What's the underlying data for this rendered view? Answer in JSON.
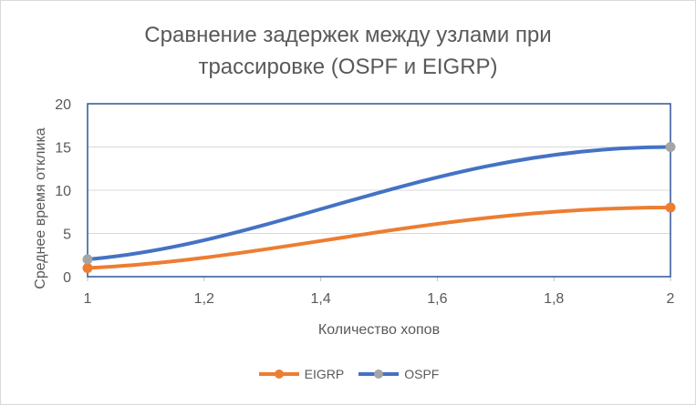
{
  "chart_data": {
    "type": "line",
    "title_lines": [
      "Сравнение задержек между узлами при",
      "трассировке (OSPF и EIGRP)"
    ],
    "xlabel": "Количество хопов",
    "ylabel": "Среднее время отклика",
    "xlim": [
      1,
      2
    ],
    "ylim": [
      0,
      20
    ],
    "x_ticks": [
      "1",
      "1,2",
      "1,4",
      "1,6",
      "1,8",
      "2"
    ],
    "x_tick_values": [
      1,
      1.2,
      1.4,
      1.6,
      1.8,
      2
    ],
    "y_ticks": [
      "0",
      "5",
      "10",
      "15",
      "20"
    ],
    "y_tick_values": [
      0,
      5,
      10,
      15,
      20
    ],
    "grid": "horizontal",
    "smooth": true,
    "legend_position": "bottom",
    "series": [
      {
        "name": "EIGRP",
        "x": [
          1,
          2
        ],
        "values": [
          1,
          8
        ],
        "color": "#ed7d31",
        "marker_color": "#ed7d31"
      },
      {
        "name": "OSPF",
        "x": [
          1,
          2
        ],
        "values": [
          2,
          15
        ],
        "color": "#4472c4",
        "marker_color": "#a5a5a5"
      }
    ],
    "highlight_frame_color": "#2e5597"
  }
}
